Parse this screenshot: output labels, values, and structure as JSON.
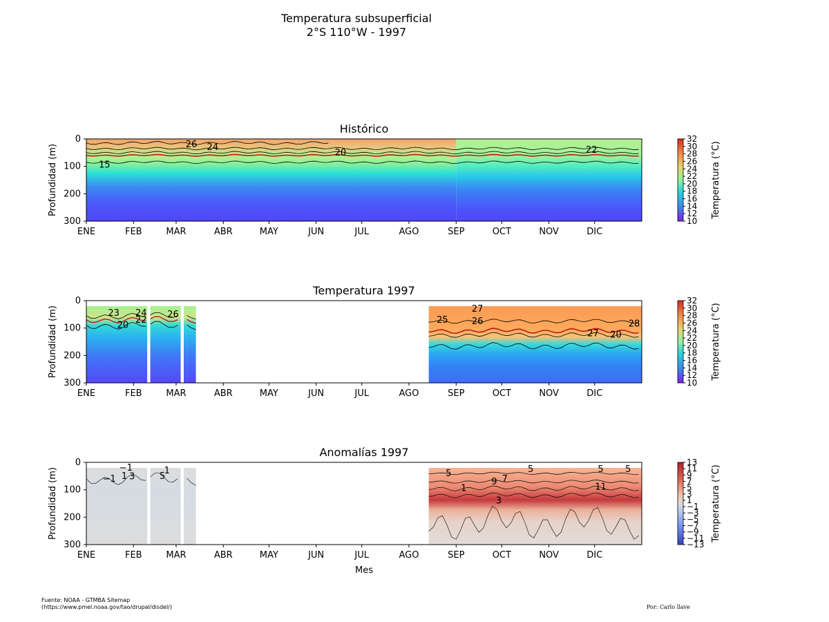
{
  "figure": {
    "title_line1": "Temperatura subsuperficial",
    "title_line2": "2°S 110°W - 1997",
    "source_line1": "Fuente: NOAA - GTMBA Sitemap",
    "source_line2": "(https://www.pmel.noaa.gov/tao/drupal/disdel/)",
    "credit": "Por: Carlo llave"
  },
  "chart_data": [
    {
      "type": "heatmap",
      "title": "Histórico",
      "ylabel": "Profundidad (m)",
      "xlabel": "",
      "months": [
        "ENE",
        "FEB",
        "MAR",
        "ABR",
        "MAY",
        "JUN",
        "JUL",
        "AGO",
        "SEP",
        "OCT",
        "NOV",
        "DIC"
      ],
      "yticks": [
        0,
        100,
        200,
        300
      ],
      "ylim": [
        300,
        0
      ],
      "colorbar": {
        "label": "Temperatura (°C)",
        "min": 10,
        "max": 32,
        "ticks": [
          10,
          12,
          14,
          16,
          18,
          20,
          22,
          24,
          26,
          28,
          30,
          32
        ]
      },
      "contour_labels": [
        {
          "text": "26",
          "day": 69,
          "depth": 20
        },
        {
          "text": "24",
          "day": 83,
          "depth": 30
        },
        {
          "text": "20",
          "day": 167,
          "depth": 50
        },
        {
          "text": "22",
          "day": 332,
          "depth": 40
        },
        {
          "text": "15",
          "day": 12,
          "depth": 95
        }
      ]
    },
    {
      "type": "heatmap",
      "title": "Temperatura 1997",
      "ylabel": "Profundidad (m)",
      "xlabel": "",
      "months": [
        "ENE",
        "FEB",
        "MAR",
        "ABR",
        "MAY",
        "JUN",
        "JUL",
        "AGO",
        "SEP",
        "OCT",
        "NOV",
        "DIC"
      ],
      "yticks": [
        0,
        100,
        200,
        300
      ],
      "ylim": [
        300,
        0
      ],
      "data_ranges_days": [
        [
          0,
          40
        ],
        [
          42,
          62
        ],
        [
          64,
          66
        ],
        [
          66,
          72
        ],
        [
          225,
          365
        ]
      ],
      "colorbar": {
        "label": "Temperatura (°C)",
        "min": 10,
        "max": 32,
        "ticks": [
          10,
          12,
          14,
          16,
          18,
          20,
          22,
          24,
          26,
          28,
          30,
          32
        ]
      },
      "contour_labels": [
        {
          "text": "23",
          "day": 18,
          "depth": 45
        },
        {
          "text": "24",
          "day": 36,
          "depth": 45
        },
        {
          "text": "22",
          "day": 36,
          "depth": 70
        },
        {
          "text": "20",
          "day": 24,
          "depth": 90
        },
        {
          "text": "26",
          "day": 57,
          "depth": 50
        },
        {
          "text": "27",
          "day": 257,
          "depth": 30
        },
        {
          "text": "25",
          "day": 234,
          "depth": 70
        },
        {
          "text": "26",
          "day": 257,
          "depth": 75
        },
        {
          "text": "27",
          "day": 333,
          "depth": 120
        },
        {
          "text": "20",
          "day": 348,
          "depth": 125
        },
        {
          "text": "28",
          "day": 360,
          "depth": 85
        }
      ]
    },
    {
      "type": "heatmap",
      "title": "Anomalías 1997",
      "ylabel": "Profundidad (m)",
      "xlabel": "Mes",
      "months": [
        "ENE",
        "FEB",
        "MAR",
        "ABR",
        "MAY",
        "JUN",
        "JUL",
        "AGO",
        "SEP",
        "OCT",
        "NOV",
        "DIC"
      ],
      "yticks": [
        0,
        100,
        200,
        300
      ],
      "ylim": [
        300,
        0
      ],
      "data_ranges_days": [
        [
          0,
          40
        ],
        [
          42,
          62
        ],
        [
          64,
          66
        ],
        [
          66,
          72
        ],
        [
          225,
          365
        ]
      ],
      "colorbar": {
        "label": "Temperatura (°C)",
        "min": -13,
        "max": 13,
        "ticks": [
          -13,
          -11,
          -9,
          -7,
          -5,
          -3,
          -1,
          1,
          3,
          5,
          7,
          9,
          11,
          13
        ]
      },
      "contour_labels": [
        {
          "text": "−1",
          "day": 26,
          "depth": 20
        },
        {
          "text": "−1",
          "day": 15,
          "depth": 60
        },
        {
          "text": "1",
          "day": 25,
          "depth": 50
        },
        {
          "text": "3",
          "day": 30,
          "depth": 52
        },
        {
          "text": "1",
          "day": 53,
          "depth": 30
        },
        {
          "text": "5",
          "day": 50,
          "depth": 50
        },
        {
          "text": "5",
          "day": 238,
          "depth": 40
        },
        {
          "text": "7",
          "day": 275,
          "depth": 60
        },
        {
          "text": "9",
          "day": 268,
          "depth": 70
        },
        {
          "text": "5",
          "day": 292,
          "depth": 25
        },
        {
          "text": "5",
          "day": 338,
          "depth": 25
        },
        {
          "text": "5",
          "day": 356,
          "depth": 25
        },
        {
          "text": "11",
          "day": 338,
          "depth": 90
        },
        {
          "text": "3",
          "day": 271,
          "depth": 140
        },
        {
          "text": "1",
          "day": 248,
          "depth": 95
        }
      ]
    }
  ]
}
